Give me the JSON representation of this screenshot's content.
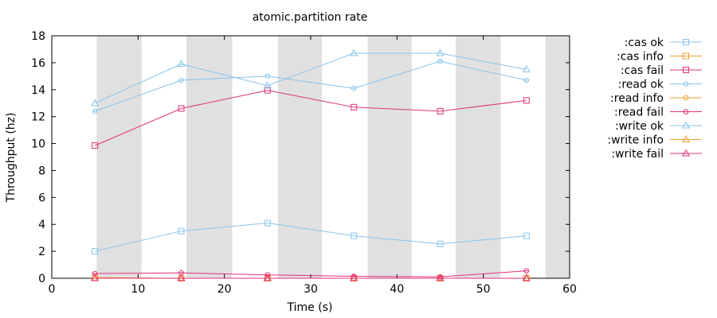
{
  "chart_data": {
    "type": "line",
    "title": "atomic.partition rate",
    "xlabel": "Time (s)",
    "ylabel": "Throughput (hz)",
    "xlim": [
      0,
      60
    ],
    "ylim": [
      0,
      18
    ],
    "xticks": [
      0,
      10,
      20,
      30,
      40,
      50,
      60
    ],
    "yticks": [
      0,
      2,
      4,
      6,
      8,
      10,
      12,
      14,
      16,
      18
    ],
    "legend_position": "outside-right",
    "partition_shading": {
      "color": "#e0e0e0",
      "intervals": [
        [
          5.2,
          10.4
        ],
        [
          15.6,
          20.9
        ],
        [
          26.2,
          31.3
        ],
        [
          36.6,
          41.7
        ],
        [
          46.8,
          52.0
        ],
        [
          57.2,
          60
        ]
      ]
    },
    "series": [
      {
        "name": ":cas ok",
        "color": "#87c4ee",
        "marker": "square",
        "x": [
          5,
          15,
          25,
          35,
          45,
          55
        ],
        "values": [
          2.0,
          3.5,
          4.1,
          3.15,
          2.55,
          3.15
        ]
      },
      {
        "name": ":cas info",
        "color": "#f0a030",
        "marker": "square",
        "x": [
          5,
          15,
          25,
          35,
          45,
          55
        ],
        "values": [
          0.05,
          0.0,
          0.0,
          0.0,
          0.0,
          0.0
        ]
      },
      {
        "name": ":cas fail",
        "color": "#e0307a",
        "marker": "square",
        "x": [
          5,
          15,
          25,
          35,
          45,
          55
        ],
        "values": [
          9.85,
          12.6,
          13.95,
          12.7,
          12.4,
          13.2
        ]
      },
      {
        "name": ":read ok",
        "color": "#87c4ee",
        "marker": "circle",
        "x": [
          5,
          15,
          25,
          35,
          45,
          55
        ],
        "values": [
          12.4,
          14.7,
          15.0,
          14.1,
          16.1,
          14.7
        ]
      },
      {
        "name": ":read info",
        "color": "#f0a030",
        "marker": "circle",
        "x": [
          5,
          15,
          25,
          35,
          45,
          55
        ],
        "values": [
          0.0,
          0.0,
          0.0,
          0.0,
          0.0,
          0.0
        ]
      },
      {
        "name": ":read fail",
        "color": "#e0307a",
        "marker": "circle",
        "x": [
          5,
          15,
          25,
          35,
          45,
          55
        ],
        "values": [
          0.35,
          0.4,
          0.25,
          0.15,
          0.1,
          0.55
        ]
      },
      {
        "name": ":write ok",
        "color": "#87c4ee",
        "marker": "triangle",
        "x": [
          5,
          15,
          25,
          35,
          45,
          55
        ],
        "values": [
          13.0,
          15.9,
          14.3,
          16.7,
          16.7,
          15.5
        ]
      },
      {
        "name": ":write info",
        "color": "#f0a030",
        "marker": "triangle",
        "x": [
          5,
          15,
          25,
          35,
          45,
          55
        ],
        "values": [
          0.0,
          0.0,
          0.0,
          0.0,
          0.0,
          0.0
        ]
      },
      {
        "name": ":write fail",
        "color": "#e0307a",
        "marker": "triangle",
        "x": [
          5,
          15,
          25,
          35,
          45,
          55
        ],
        "values": [
          0.0,
          0.0,
          0.0,
          0.0,
          0.0,
          0.0
        ]
      }
    ]
  }
}
